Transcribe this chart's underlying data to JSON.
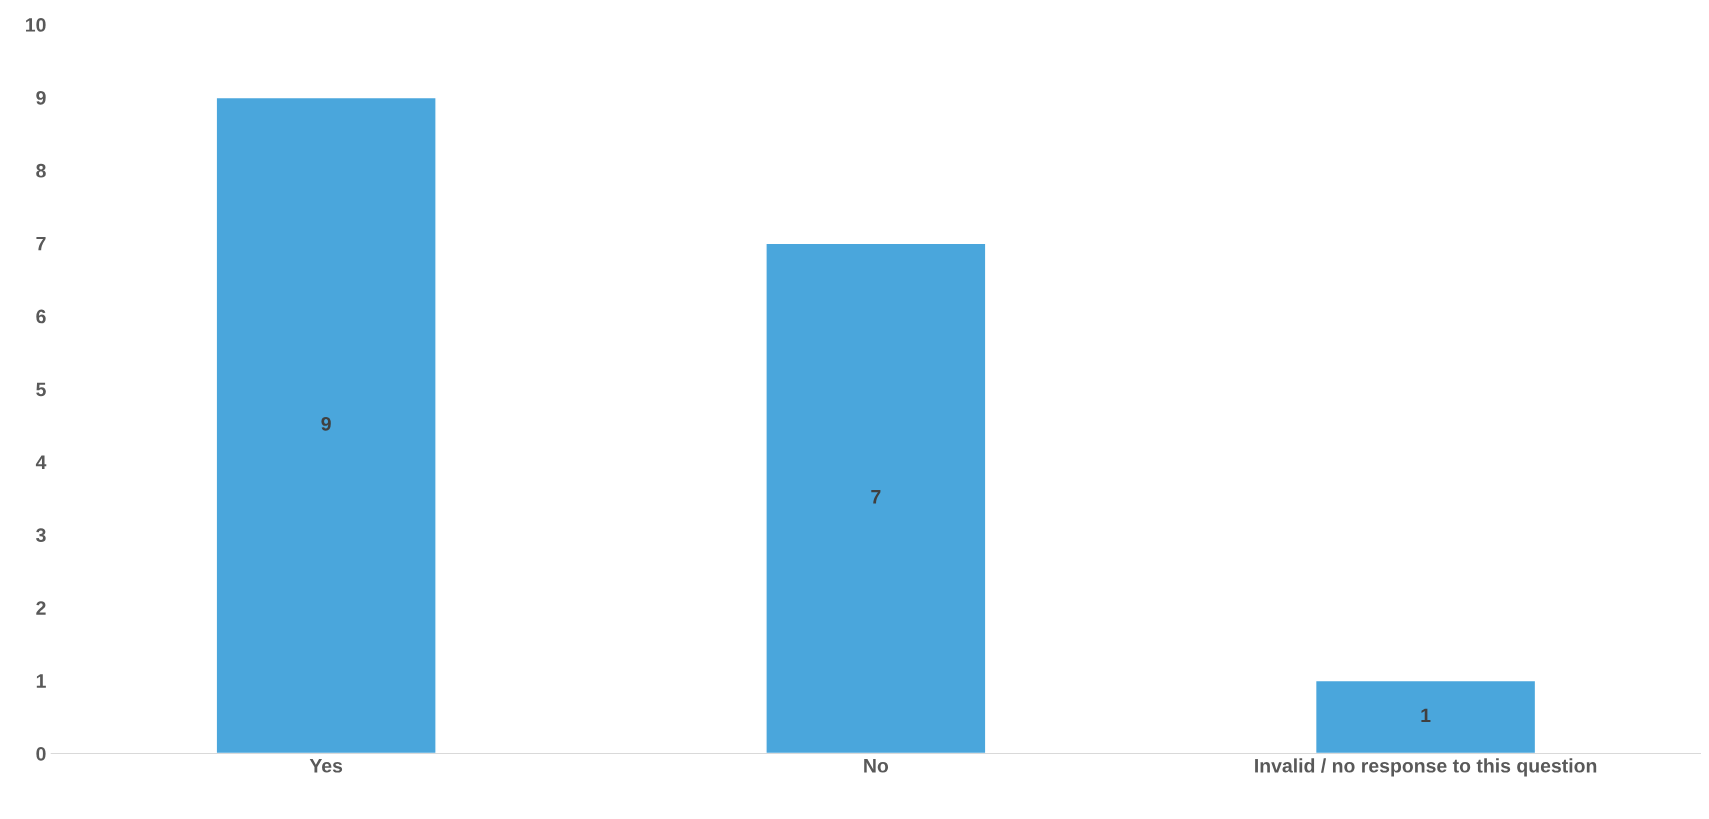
{
  "chart_data": {
    "type": "bar",
    "categories": [
      "Yes",
      "No",
      "Invalid / no response to this question"
    ],
    "values": [
      9,
      7,
      1
    ],
    "color": "#4aa6dc",
    "ylim": [
      0,
      10
    ],
    "yticks": [
      0,
      1,
      2,
      3,
      4,
      5,
      6,
      7,
      8,
      9,
      10
    ],
    "data_labels": true,
    "grid": false,
    "legend": false
  }
}
